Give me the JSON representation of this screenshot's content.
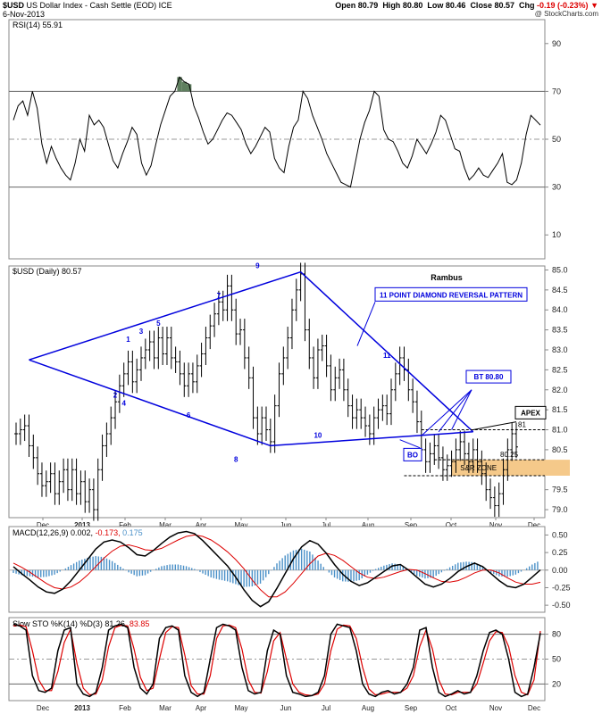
{
  "header": {
    "symbol": "$USD",
    "name": "US Dollar Index - Cash Settle (EOD) ICE",
    "date": "6-Nov-2013",
    "open_label": "Open",
    "open": "80.79",
    "high_label": "High",
    "high": "80.80",
    "low_label": "Low",
    "low": "80.46",
    "close_label": "Close",
    "close": "80.57",
    "chg_label": "Chg",
    "chg": "-0.19 (-0.23%)",
    "watermark": "@ StockCharts.com"
  },
  "colors": {
    "blue": "#0000dd",
    "red": "#dd0000",
    "macd_hist": "#4a90c8",
    "sr_zone": "#f5c98a",
    "rsi_fill": "#5f7f5f"
  },
  "chart_data": [
    {
      "type": "line",
      "panel": "RSI",
      "legend": "RSI(14) 55.91",
      "ylim": [
        0,
        100
      ],
      "y_ticks": [
        90,
        70,
        50,
        30,
        10
      ],
      "reference_lines": [
        70,
        50,
        30
      ],
      "series": [
        {
          "name": "RSI(14)",
          "values": [
            58,
            64,
            66,
            60,
            70,
            63,
            48,
            40,
            47,
            42,
            38,
            35,
            33,
            40,
            50,
            45,
            60,
            56,
            58,
            55,
            48,
            41,
            38,
            44,
            49,
            55,
            52,
            40,
            35,
            39,
            48,
            56,
            62,
            68,
            70,
            76,
            74,
            73,
            64,
            59,
            53,
            48,
            50,
            54,
            58,
            61,
            60,
            57,
            54,
            48,
            44,
            47,
            51,
            55,
            53,
            42,
            38,
            36,
            47,
            55,
            58,
            70,
            67,
            60,
            55,
            50,
            44,
            40,
            36,
            32,
            31,
            30,
            40,
            50,
            57,
            62,
            70,
            68,
            54,
            50,
            49,
            45,
            40,
            38,
            43,
            50,
            47,
            44,
            48,
            53,
            60,
            58,
            52,
            46,
            45,
            38,
            33,
            35,
            38,
            35,
            34,
            37,
            40,
            44,
            32,
            31,
            33,
            40,
            52,
            60,
            58,
            55.91
          ]
        }
      ]
    },
    {
      "type": "bar",
      "panel": "price",
      "legend": "$USD (Daily) 80.57",
      "ylim": [
        78.8,
        85.1
      ],
      "y_ticks": [
        85.0,
        84.5,
        84.0,
        83.5,
        83.0,
        82.5,
        82.0,
        81.5,
        81.0,
        80.5,
        80.0,
        79.5,
        79.0
      ],
      "series": [
        {
          "name": "$USD (Daily)",
          "values": [
            80.9,
            81.0,
            81.1,
            80.6,
            80.3,
            79.9,
            79.6,
            79.7,
            79.9,
            79.4,
            79.7,
            80.0,
            79.5,
            80.0,
            79.4,
            79.7,
            79.2,
            79.5,
            79.0,
            80.0,
            80.6,
            80.9,
            81.3,
            81.7,
            82.1,
            82.4,
            82.7,
            82.2,
            82.5,
            82.8,
            83.0,
            83.2,
            82.8,
            83.3,
            82.9,
            83.3,
            82.8,
            82.7,
            82.4,
            82.1,
            82.4,
            82.2,
            82.6,
            82.9,
            83.3,
            83.6,
            83.9,
            84.2,
            84.0,
            84.6,
            84.0,
            83.4,
            83.5,
            82.8,
            82.3,
            81.3,
            80.9,
            81.3,
            81.0,
            80.7,
            81.6,
            82.4,
            82.8,
            83.3,
            84.0,
            84.5,
            84.9,
            83.5,
            82.8,
            82.3,
            83.0,
            83.1,
            82.6,
            82.0,
            82.3,
            82.5,
            82.0,
            81.6,
            81.3,
            81.5,
            81.3,
            81.1,
            80.9,
            81.3,
            81.5,
            81.6,
            81.4,
            82.0,
            82.4,
            82.8,
            82.5,
            82.0,
            81.7,
            81.2,
            80.5,
            80.2,
            80.4,
            80.6,
            80.3,
            80.0,
            80.1,
            80.2,
            80.5,
            80.7,
            80.4,
            80.2,
            80.5,
            80.2,
            79.9,
            79.5,
            79.3,
            79.1,
            79.4,
            80.0,
            80.5,
            80.9,
            80.57
          ]
        }
      ],
      "x_labels": [
        "Dec",
        "2013",
        "Feb",
        "Mar",
        "Apr",
        "May",
        "Jun",
        "Jul",
        "Aug",
        "Sep",
        "Oct",
        "Nov",
        "Dec"
      ],
      "annotations": {
        "title": "Rambus",
        "pattern_label": "11 POINT DIAMOND   REVERSAL PATTERN",
        "bt_label": "BT 80.80",
        "apex_label": "APEX",
        "bo_label": "BO",
        "sr_label": "S&R ZONE",
        "level_81": "81",
        "level_8025": "80.25",
        "points": [
          "1",
          "2",
          "3",
          "4",
          "5",
          "6",
          "7",
          "8",
          "9",
          "10",
          "11"
        ]
      }
    },
    {
      "type": "line",
      "panel": "MACD",
      "legend_prefix": "MACD(12,26,9)",
      "legend_macd": "0.002,",
      "legend_signal": "-0.173,",
      "legend_hist": "0.175",
      "ylim": [
        -0.6,
        0.62
      ],
      "y_ticks": [
        "0.50",
        "0.25",
        "0.00",
        "-0.25",
        "-0.50"
      ],
      "series": [
        {
          "name": "MACD",
          "values": [
            0.05,
            -0.05,
            -0.14,
            -0.24,
            -0.31,
            -0.33,
            -0.27,
            -0.15,
            0.0,
            0.15,
            0.3,
            0.4,
            0.43,
            0.4,
            0.32,
            0.22,
            0.2,
            0.28,
            0.38,
            0.47,
            0.53,
            0.55,
            0.52,
            0.42,
            0.3,
            0.18,
            0.06,
            -0.1,
            -0.28,
            -0.43,
            -0.52,
            -0.45,
            -0.26,
            -0.05,
            0.16,
            0.33,
            0.42,
            0.37,
            0.24,
            0.08,
            -0.06,
            -0.16,
            -0.22,
            -0.18,
            -0.1,
            -0.02,
            0.06,
            0.08,
            0.0,
            -0.1,
            -0.2,
            -0.24,
            -0.2,
            -0.12,
            -0.02,
            0.05,
            0.1,
            0.05,
            -0.05,
            -0.15,
            -0.23,
            -0.25,
            -0.2,
            -0.1,
            0.002
          ]
        },
        {
          "name": "Signal",
          "values": [
            0.1,
            0.04,
            -0.03,
            -0.11,
            -0.19,
            -0.25,
            -0.27,
            -0.24,
            -0.17,
            -0.07,
            0.05,
            0.17,
            0.27,
            0.34,
            0.36,
            0.33,
            0.29,
            0.28,
            0.31,
            0.37,
            0.43,
            0.48,
            0.5,
            0.48,
            0.43,
            0.35,
            0.26,
            0.15,
            0.02,
            -0.14,
            -0.28,
            -0.38,
            -0.38,
            -0.31,
            -0.19,
            -0.05,
            0.09,
            0.2,
            0.24,
            0.21,
            0.14,
            0.05,
            -0.04,
            -0.1,
            -0.12,
            -0.1,
            -0.06,
            -0.02,
            0.01,
            0.0,
            -0.05,
            -0.11,
            -0.16,
            -0.17,
            -0.15,
            -0.1,
            -0.04,
            0.0,
            0.0,
            -0.04,
            -0.11,
            -0.17,
            -0.2,
            -0.2,
            -0.173
          ]
        }
      ]
    },
    {
      "type": "line",
      "panel": "STO",
      "legend_prefix": "Slow STO %K(14) %D(3)",
      "legend_k": "81.26,",
      "legend_d": "83.85",
      "ylim": [
        0,
        100
      ],
      "y_ticks": [
        80,
        50,
        20
      ],
      "reference_lines": [
        80,
        50,
        20
      ],
      "series": [
        {
          "name": "%K",
          "values": [
            92,
            90,
            85,
            30,
            12,
            10,
            15,
            60,
            85,
            88,
            20,
            8,
            5,
            10,
            40,
            85,
            90,
            92,
            88,
            40,
            15,
            8,
            20,
            75,
            88,
            90,
            85,
            30,
            10,
            5,
            10,
            50,
            88,
            92,
            90,
            85,
            40,
            12,
            8,
            10,
            60,
            85,
            80,
            30,
            10,
            8,
            5,
            6,
            10,
            30,
            80,
            92,
            90,
            88,
            60,
            20,
            8,
            5,
            10,
            12,
            8,
            10,
            20,
            40,
            85,
            88,
            40,
            10,
            5,
            8,
            12,
            8,
            10,
            30,
            60,
            82,
            85,
            80,
            50,
            10,
            5,
            8,
            40,
            81.26
          ]
        },
        {
          "name": "%D",
          "values": [
            90,
            91,
            89,
            60,
            25,
            12,
            12,
            35,
            70,
            86,
            45,
            15,
            7,
            8,
            25,
            65,
            88,
            91,
            90,
            62,
            28,
            12,
            15,
            50,
            82,
            89,
            88,
            55,
            18,
            8,
            8,
            30,
            75,
            90,
            91,
            88,
            62,
            25,
            10,
            9,
            35,
            72,
            82,
            50,
            20,
            10,
            7,
            6,
            8,
            20,
            60,
            86,
            91,
            90,
            75,
            40,
            14,
            7,
            8,
            10,
            10,
            10,
            15,
            30,
            65,
            85,
            62,
            25,
            8,
            7,
            10,
            10,
            10,
            20,
            45,
            72,
            83,
            82,
            65,
            30,
            10,
            7,
            25,
            83.85
          ]
        }
      ]
    }
  ]
}
